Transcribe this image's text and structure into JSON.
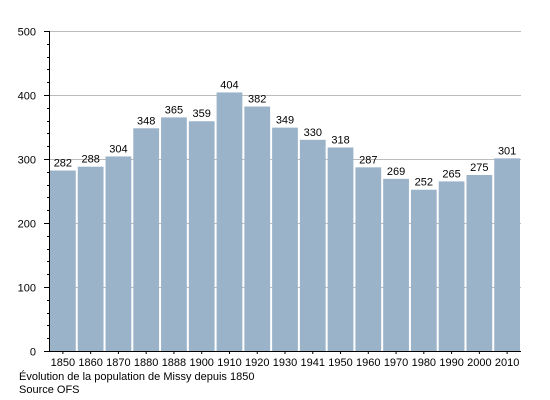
{
  "chart_data": {
    "type": "bar",
    "categories": [
      "1850",
      "1860",
      "1870",
      "1880",
      "1888",
      "1900",
      "1910",
      "1920",
      "1930",
      "1941",
      "1950",
      "1960",
      "1970",
      "1980",
      "1990",
      "2000",
      "2010"
    ],
    "values": [
      282,
      288,
      304,
      348,
      365,
      359,
      404,
      382,
      349,
      330,
      318,
      287,
      269,
      252,
      265,
      275,
      301
    ],
    "data_labels": [
      "282",
      "288",
      "304",
      "348",
      "365",
      "359",
      "404",
      "382",
      "349",
      "330",
      "318",
      "287",
      "269",
      "252",
      "265",
      "275",
      "301"
    ],
    "ylim": [
      0,
      500
    ],
    "yticks": [
      0,
      100,
      200,
      300,
      400,
      500
    ],
    "ytick_labels": [
      "0",
      "100",
      "200",
      "300",
      "400",
      "500"
    ],
    "minor_tick_step": 20,
    "grid": true,
    "title": "",
    "xlabel": "",
    "ylabel": "",
    "colors": {
      "bar": "#9bb3c9",
      "grid": "#bbbbbb",
      "axis": "#000000"
    }
  },
  "caption": {
    "line1": "Évolution de la population de Missy depuis 1850",
    "line2": "Source OFS"
  }
}
